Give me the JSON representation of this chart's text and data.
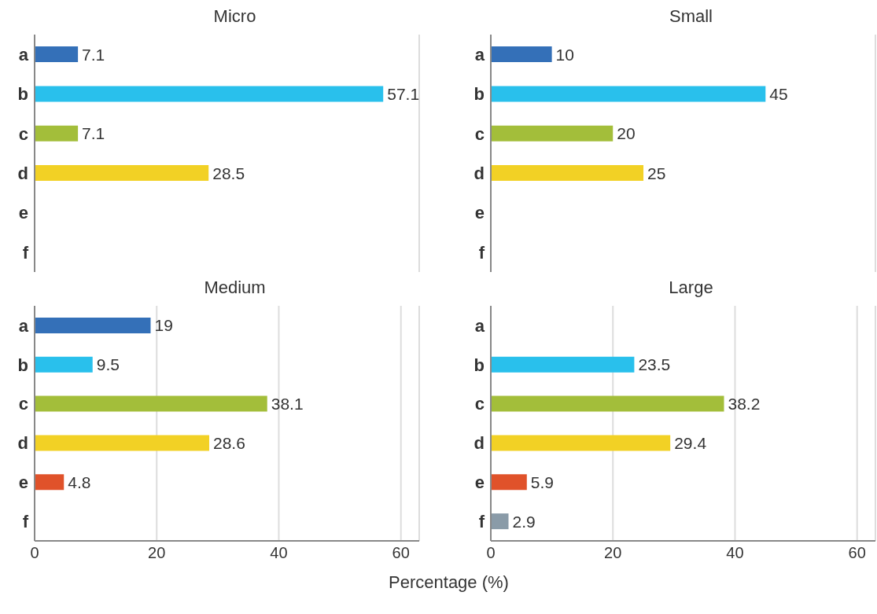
{
  "chart_data": [
    {
      "type": "bar",
      "orientation": "horizontal",
      "title": "Micro",
      "categories": [
        "a",
        "b",
        "c",
        "d",
        "e",
        "f"
      ],
      "values": [
        7.1,
        57.1,
        7.1,
        28.5,
        null,
        null
      ],
      "colors": [
        "#3470b8",
        "#29c0ec",
        "#a3be3a",
        "#f2d125",
        "#e0522a",
        "#8a9ba8"
      ],
      "data_labels": true,
      "xlim": [
        0,
        63
      ],
      "xticks": [
        0,
        20,
        40,
        60
      ],
      "grid": "x",
      "tick_labels": "y"
    },
    {
      "type": "bar",
      "orientation": "horizontal",
      "title": "Small",
      "categories": [
        "a",
        "b",
        "c",
        "d",
        "e",
        "f"
      ],
      "values": [
        10,
        45,
        20,
        25,
        null,
        null
      ],
      "colors": [
        "#3470b8",
        "#29c0ec",
        "#a3be3a",
        "#f2d125",
        "#e0522a",
        "#8a9ba8"
      ],
      "data_labels": true,
      "xlim": [
        0,
        63
      ],
      "xticks": [
        0,
        20,
        40,
        60
      ],
      "grid": "x",
      "tick_labels": "y"
    },
    {
      "type": "bar",
      "orientation": "horizontal",
      "title": "Medium",
      "categories": [
        "a",
        "b",
        "c",
        "d",
        "e",
        "f"
      ],
      "values": [
        19,
        9.5,
        38.1,
        28.6,
        4.8,
        null
      ],
      "colors": [
        "#3470b8",
        "#29c0ec",
        "#a3be3a",
        "#f2d125",
        "#e0522a",
        "#8a9ba8"
      ],
      "data_labels": true,
      "xlim": [
        0,
        63
      ],
      "xticks": [
        0,
        20,
        40,
        60
      ],
      "grid": "x",
      "xlabel": "Percentage (%)"
    },
    {
      "type": "bar",
      "orientation": "horizontal",
      "title": "Large",
      "categories": [
        "a",
        "b",
        "c",
        "d",
        "e",
        "f"
      ],
      "values": [
        null,
        23.5,
        38.2,
        29.4,
        5.9,
        2.9
      ],
      "colors": [
        "#3470b8",
        "#29c0ec",
        "#a3be3a",
        "#f2d125",
        "#e0522a",
        "#8a9ba8"
      ],
      "data_labels": true,
      "xlim": [
        0,
        63
      ],
      "xticks": [
        0,
        20,
        40,
        60
      ],
      "grid": "x"
    }
  ]
}
